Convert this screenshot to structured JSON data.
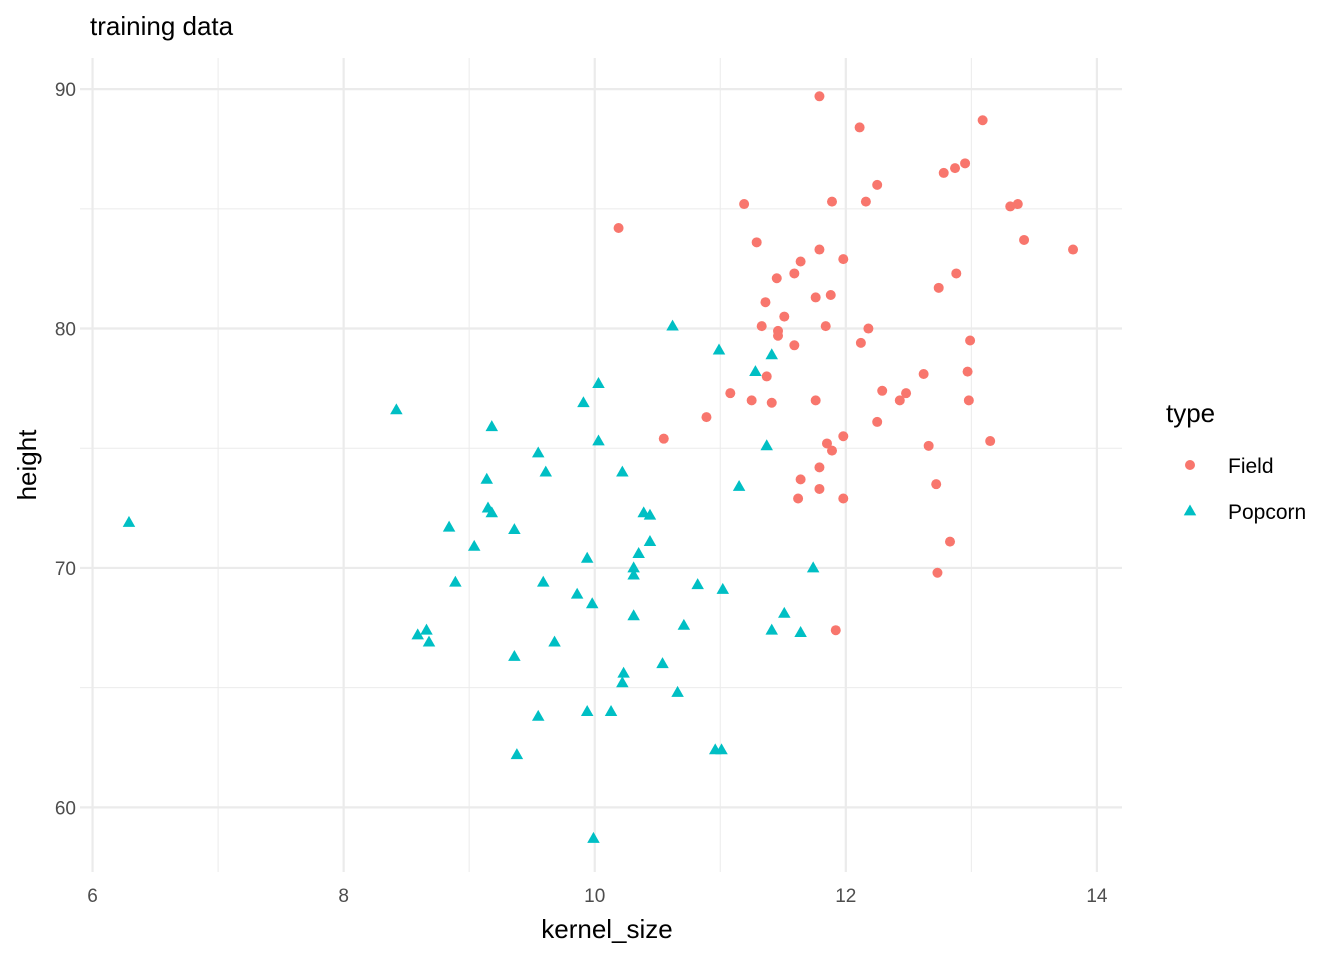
{
  "chart_data": {
    "type": "scatter",
    "title": "training data",
    "xlabel": "kernel_size",
    "ylabel": "height",
    "xlim": [
      5.9,
      14.2
    ],
    "ylim": [
      57.3,
      91.3
    ],
    "x_ticks": [
      6,
      8,
      10,
      12,
      14
    ],
    "x_minor_ticks": [
      7,
      9,
      11,
      13
    ],
    "y_ticks": [
      60,
      70,
      80,
      90
    ],
    "y_minor_ticks": [
      65,
      75,
      85
    ],
    "grid": true,
    "legend": {
      "title": "type",
      "placement": "right"
    },
    "series": [
      {
        "name": "Field",
        "color": "#F8766D",
        "marker": "circle",
        "points": [
          [
            11.79,
            89.7
          ],
          [
            12.11,
            88.4
          ],
          [
            13.09,
            88.7
          ],
          [
            12.16,
            85.3
          ],
          [
            12.25,
            86.0
          ],
          [
            12.78,
            86.5
          ],
          [
            12.87,
            86.7
          ],
          [
            12.95,
            86.9
          ],
          [
            11.19,
            85.2
          ],
          [
            11.89,
            85.3
          ],
          [
            13.31,
            85.1
          ],
          [
            13.37,
            85.2
          ],
          [
            10.19,
            84.2
          ],
          [
            11.29,
            83.6
          ],
          [
            11.79,
            83.3
          ],
          [
            13.42,
            83.7
          ],
          [
            13.81,
            83.3
          ],
          [
            11.98,
            82.9
          ],
          [
            11.64,
            82.8
          ],
          [
            11.59,
            82.3
          ],
          [
            11.45,
            82.1
          ],
          [
            12.88,
            82.3
          ],
          [
            12.74,
            81.7
          ],
          [
            11.36,
            81.1
          ],
          [
            11.76,
            81.3
          ],
          [
            11.88,
            81.4
          ],
          [
            11.51,
            80.5
          ],
          [
            11.33,
            80.1
          ],
          [
            11.46,
            79.9
          ],
          [
            11.46,
            79.7
          ],
          [
            11.84,
            80.1
          ],
          [
            12.18,
            80.0
          ],
          [
            11.59,
            79.3
          ],
          [
            12.12,
            79.4
          ],
          [
            12.99,
            79.5
          ],
          [
            11.08,
            77.3
          ],
          [
            11.25,
            77.0
          ],
          [
            11.37,
            78.0
          ],
          [
            11.41,
            76.9
          ],
          [
            11.76,
            77.0
          ],
          [
            12.29,
            77.4
          ],
          [
            12.43,
            77.0
          ],
          [
            12.48,
            77.3
          ],
          [
            12.62,
            78.1
          ],
          [
            12.97,
            78.2
          ],
          [
            12.98,
            77.0
          ],
          [
            10.89,
            76.3
          ],
          [
            12.25,
            76.1
          ],
          [
            10.55,
            75.4
          ],
          [
            11.85,
            75.2
          ],
          [
            11.98,
            75.5
          ],
          [
            11.89,
            74.9
          ],
          [
            12.66,
            75.1
          ],
          [
            13.15,
            75.3
          ],
          [
            11.79,
            74.2
          ],
          [
            11.64,
            73.7
          ],
          [
            11.62,
            72.9
          ],
          [
            11.79,
            73.3
          ],
          [
            11.98,
            72.9
          ],
          [
            12.72,
            73.5
          ],
          [
            12.83,
            71.1
          ],
          [
            12.73,
            69.8
          ],
          [
            11.92,
            67.4
          ]
        ]
      },
      {
        "name": "Popcorn",
        "color": "#00BFC4",
        "marker": "triangle",
        "points": [
          [
            10.62,
            80.1
          ],
          [
            10.99,
            79.1
          ],
          [
            11.41,
            78.9
          ],
          [
            11.28,
            78.2
          ],
          [
            10.03,
            77.7
          ],
          [
            9.91,
            76.9
          ],
          [
            8.42,
            76.6
          ],
          [
            9.18,
            75.9
          ],
          [
            10.03,
            75.3
          ],
          [
            11.37,
            75.1
          ],
          [
            9.55,
            74.8
          ],
          [
            9.61,
            74.0
          ],
          [
            10.22,
            74.0
          ],
          [
            9.14,
            73.7
          ],
          [
            11.15,
            73.4
          ],
          [
            9.15,
            72.5
          ],
          [
            9.18,
            72.3
          ],
          [
            10.39,
            72.3
          ],
          [
            10.44,
            72.2
          ],
          [
            8.84,
            71.7
          ],
          [
            9.36,
            71.6
          ],
          [
            10.44,
            71.1
          ],
          [
            9.04,
            70.9
          ],
          [
            10.35,
            70.6
          ],
          [
            9.94,
            70.4
          ],
          [
            10.31,
            70.0
          ],
          [
            10.31,
            69.7
          ],
          [
            11.74,
            70.0
          ],
          [
            8.89,
            69.4
          ],
          [
            9.59,
            69.4
          ],
          [
            10.82,
            69.3
          ],
          [
            11.02,
            69.1
          ],
          [
            9.86,
            68.9
          ],
          [
            9.98,
            68.5
          ],
          [
            10.31,
            68.0
          ],
          [
            11.51,
            68.1
          ],
          [
            10.71,
            67.6
          ],
          [
            8.66,
            67.4
          ],
          [
            8.59,
            67.2
          ],
          [
            11.41,
            67.4
          ],
          [
            11.64,
            67.3
          ],
          [
            8.68,
            66.9
          ],
          [
            9.68,
            66.9
          ],
          [
            9.36,
            66.3
          ],
          [
            10.54,
            66.0
          ],
          [
            10.23,
            65.6
          ],
          [
            10.22,
            65.2
          ],
          [
            10.66,
            64.8
          ],
          [
            9.94,
            64.0
          ],
          [
            10.13,
            64.0
          ],
          [
            9.55,
            63.8
          ],
          [
            10.96,
            62.4
          ],
          [
            11.01,
            62.4
          ],
          [
            9.38,
            62.2
          ],
          [
            9.99,
            58.7
          ],
          [
            6.29,
            71.9
          ]
        ]
      }
    ]
  }
}
